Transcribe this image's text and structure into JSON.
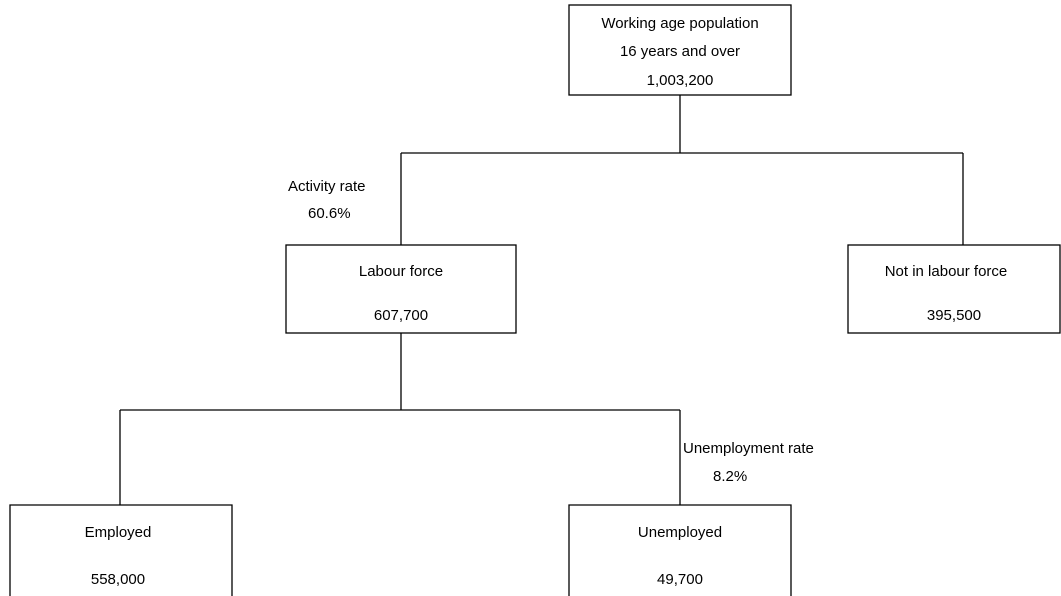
{
  "nodes": [
    {
      "lines": [
        "Working age population",
        "16 years and over"
      ],
      "value": "1,003,200"
    },
    {
      "label": "Labour force",
      "value": "607,700"
    },
    {
      "label": "Not in labour force",
      "value": "395,500"
    },
    {
      "label": "Employed",
      "value": "558,000"
    },
    {
      "label": "Unemployed",
      "value": "49,700"
    }
  ],
  "rates": [
    {
      "label": "Activity rate",
      "value": "60.6%"
    },
    {
      "label": "Unemployment rate",
      "value": "8.2%"
    }
  ]
}
